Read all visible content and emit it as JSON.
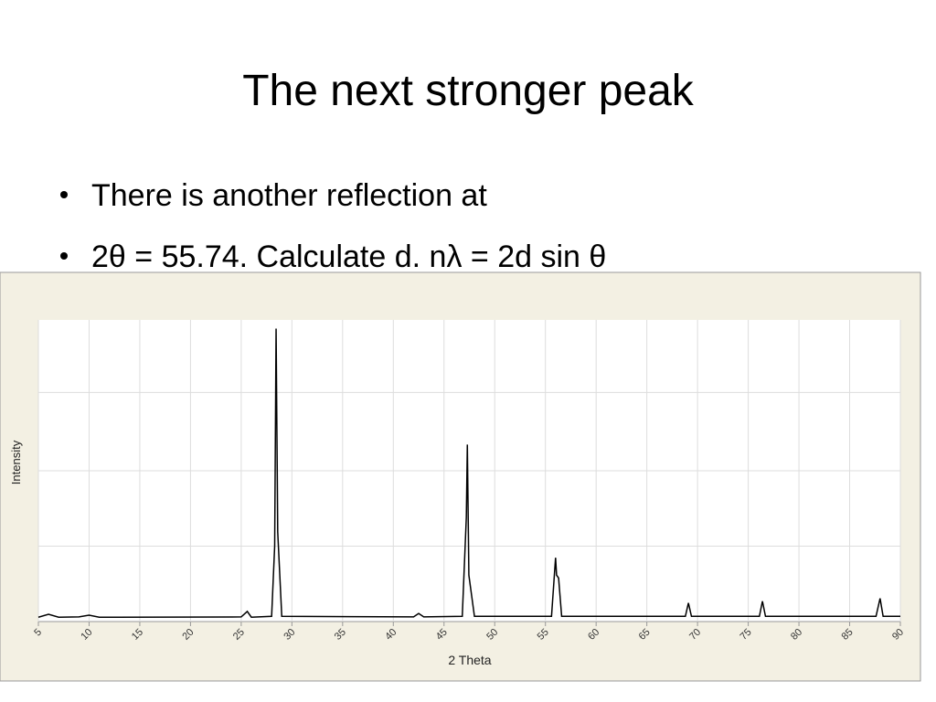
{
  "slide": {
    "title": "The next stronger peak",
    "bullets": [
      "There is another reflection at",
      "2θ  = 55.74. Calculate d. nλ = 2d sin θ"
    ]
  },
  "chart_data": {
    "type": "line",
    "x_label": "2 Theta",
    "y_label": "Intensity",
    "x": [
      5,
      6,
      7,
      9,
      10,
      11,
      25,
      25.6,
      26,
      28,
      28.3,
      28.44,
      28.6,
      29,
      42,
      42.5,
      43,
      46.8,
      47.2,
      47.3,
      47.45,
      48,
      55.6,
      56,
      56.1,
      56.3,
      56.6,
      68.8,
      69.1,
      69.4,
      76.1,
      76.4,
      76.7,
      87.6,
      88,
      88.3,
      90
    ],
    "series": [
      {
        "color": "#000000",
        "values": [
          0.5,
          1.5,
          0.5,
          0.6,
          1.2,
          0.5,
          0.6,
          2.5,
          0.5,
          0.8,
          25,
          100,
          30,
          0.8,
          0.6,
          1.8,
          0.6,
          0.8,
          35,
          60,
          15,
          0.8,
          0.8,
          21,
          15,
          14,
          0.8,
          0.8,
          5.4,
          0.8,
          0.8,
          6,
          0.8,
          0.8,
          7,
          0.8,
          0.8
        ]
      }
    ],
    "xlim": [
      5,
      90
    ],
    "xticks": [
      5,
      10,
      15,
      20,
      25,
      30,
      35,
      40,
      45,
      50,
      55,
      60,
      65,
      70,
      75,
      80,
      85,
      90
    ],
    "ylim": [
      -1,
      103
    ],
    "ygrid": [
      25,
      51,
      78
    ],
    "grid": true
  }
}
